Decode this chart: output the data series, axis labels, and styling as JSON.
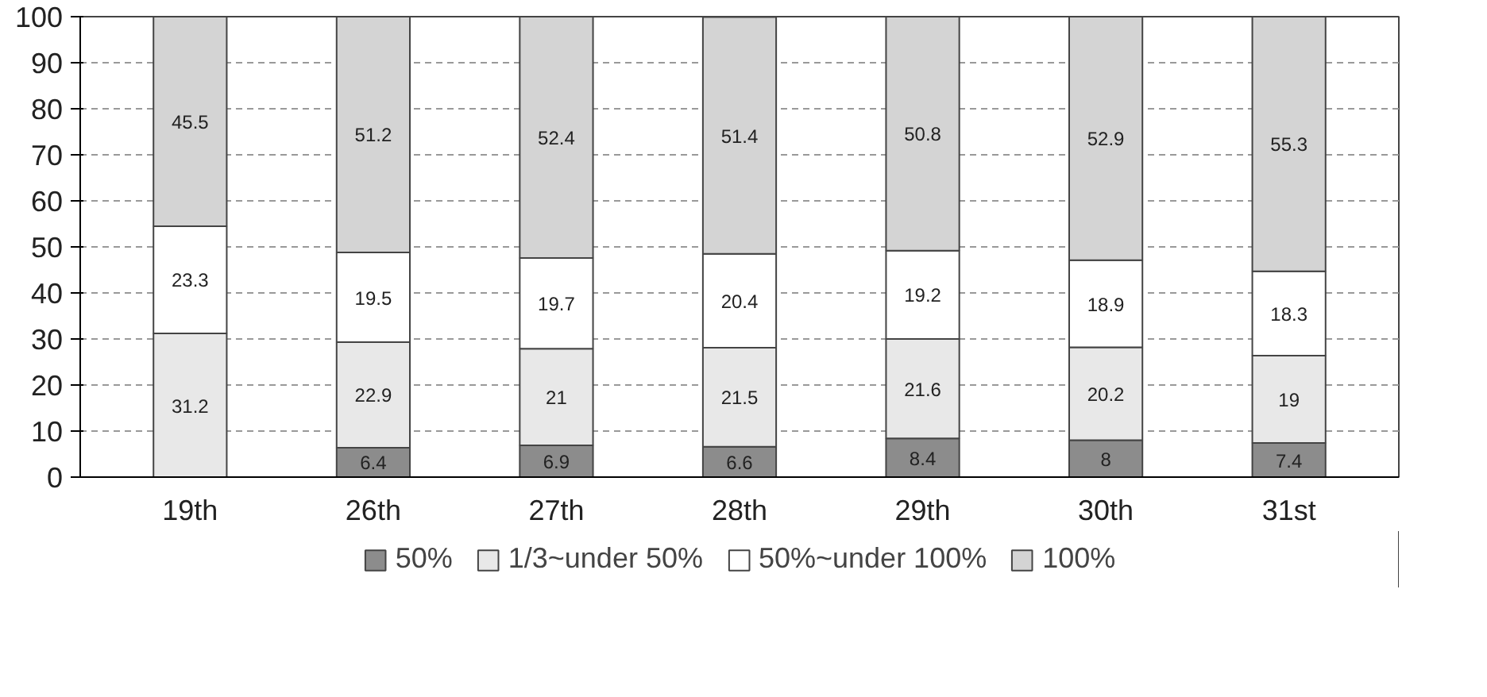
{
  "chart_data": {
    "type": "bar",
    "stacked": true,
    "categories": [
      "19th",
      "26th",
      "27th",
      "28th",
      "29th",
      "30th",
      "31st"
    ],
    "series": [
      {
        "name": "50%",
        "color": "#8c8c8c",
        "values": [
          null,
          6.4,
          6.9,
          6.6,
          8.4,
          8,
          7.4
        ]
      },
      {
        "name": "1/3~under 50%",
        "color": "#e8e8e8",
        "values": [
          31.2,
          22.9,
          21,
          21.5,
          21.6,
          20.2,
          19
        ]
      },
      {
        "name": "50%~under 100%",
        "color": "#ffffff",
        "values": [
          23.3,
          19.5,
          19.7,
          20.4,
          19.2,
          18.9,
          18.3
        ]
      },
      {
        "name": "100%",
        "color": "#d4d4d4",
        "values": [
          45.5,
          51.2,
          52.4,
          51.4,
          50.8,
          52.9,
          55.3
        ]
      }
    ],
    "ylim": [
      0,
      100
    ],
    "yticks": [
      0,
      10,
      20,
      30,
      40,
      50,
      60,
      70,
      80,
      90,
      100
    ],
    "grid": "y",
    "legend": "bottom",
    "data_labels": true
  }
}
